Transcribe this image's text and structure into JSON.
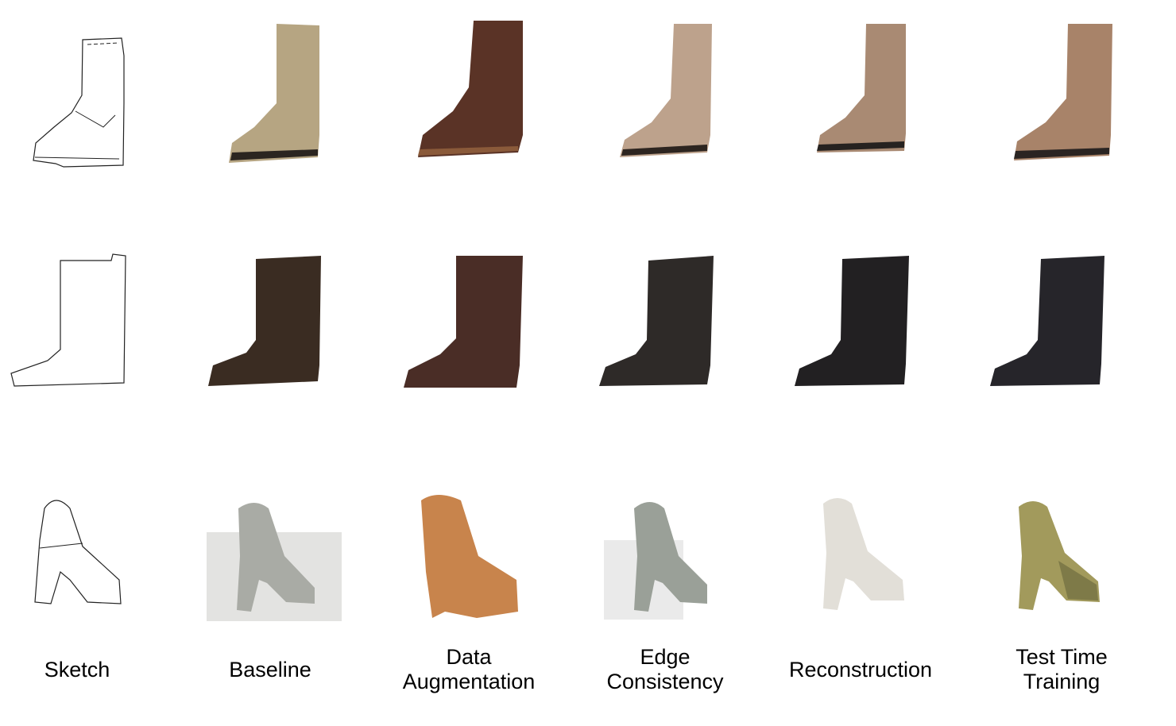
{
  "columns": [
    {
      "key": "sketch",
      "lines": [
        "Sketch"
      ]
    },
    {
      "key": "baseline",
      "lines": [
        "Baseline"
      ]
    },
    {
      "key": "data-augmentation",
      "lines": [
        "Data",
        "Augmentation"
      ]
    },
    {
      "key": "edge-consistency",
      "lines": [
        "Edge",
        "Consistency"
      ]
    },
    {
      "key": "reconstruction",
      "lines": [
        "Reconstruction"
      ]
    },
    {
      "key": "test-time-training",
      "lines": [
        "Test Time",
        "Training"
      ]
    }
  ],
  "rows": [
    {
      "key": "ankle-boot",
      "colors": [
        "#ffffff",
        "#b6a582",
        "#5a3326",
        "#bda28c",
        "#a98a73",
        "#a88369"
      ]
    },
    {
      "key": "tall-boot",
      "colors": [
        "#ffffff",
        "#3a2c22",
        "#4a2d26",
        "#2e2a28",
        "#222022",
        "#26252a"
      ]
    },
    {
      "key": "high-heel",
      "colors": [
        "#ffffff",
        "#a9aba5",
        "#c8844c",
        "#9aa098",
        "#e2dfd8",
        "#a29a5c"
      ]
    }
  ]
}
